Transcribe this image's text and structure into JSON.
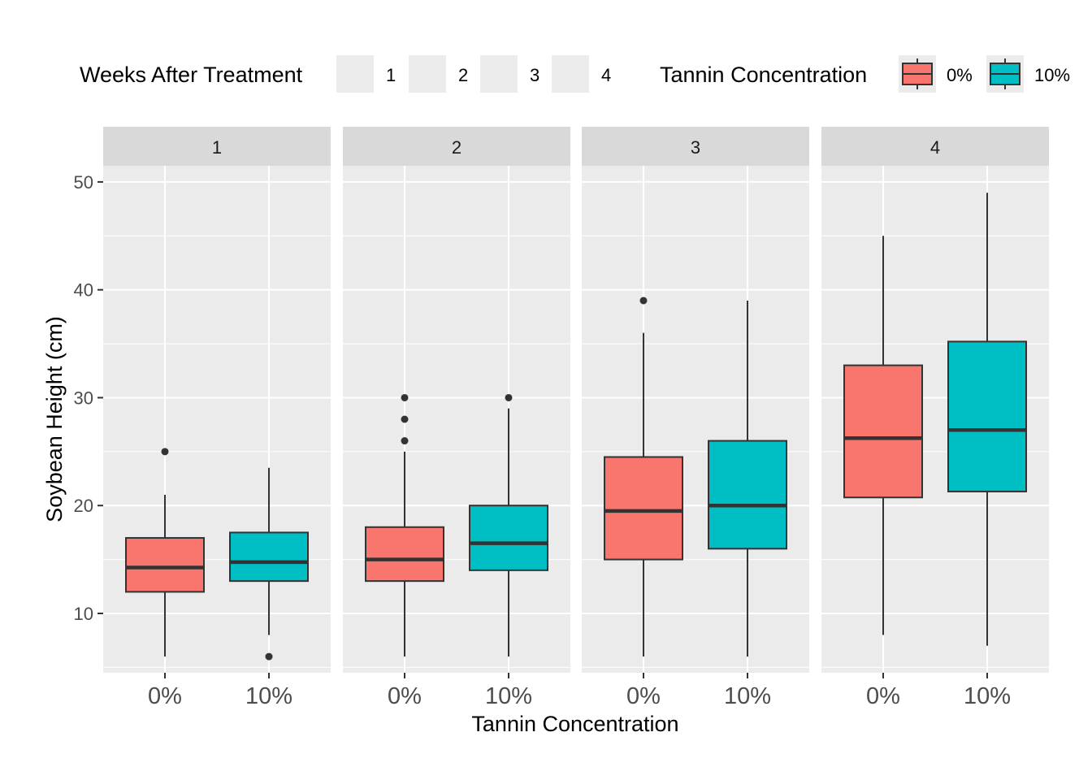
{
  "chart_data": {
    "type": "boxplot",
    "facet_title": "Weeks After Treatment",
    "facets": [
      "1",
      "2",
      "3",
      "4"
    ],
    "categories": [
      "0%",
      "10%"
    ],
    "xlabel": "Tannin Concentration",
    "ylabel": "Soybean Height (cm)",
    "yticks": [
      10,
      20,
      30,
      40,
      50
    ],
    "ylim": [
      4.5,
      51.5
    ],
    "grid": true,
    "legend": {
      "position": "top",
      "facet_legend": {
        "title": "Weeks After Treatment",
        "items": [
          "1",
          "2",
          "3",
          "4"
        ]
      },
      "fill_legend": {
        "title": "Tannin Concentration",
        "items": [
          "0%",
          "10%"
        ]
      }
    },
    "colors": {
      "0%": "#F8766D",
      "10%": "#00BFC4",
      "panel_bg": "#EBEBEB",
      "strip_bg": "#D9D9D9"
    },
    "boxes": [
      {
        "week": "1",
        "tannin": "0%",
        "min": 6,
        "q1": 12,
        "median": 14.25,
        "q3": 17,
        "max": 21,
        "outliers": [
          25
        ]
      },
      {
        "week": "1",
        "tannin": "10%",
        "min": 8,
        "q1": 13,
        "median": 14.75,
        "q3": 17.5,
        "max": 23.5,
        "outliers": [
          6
        ]
      },
      {
        "week": "2",
        "tannin": "0%",
        "min": 6,
        "q1": 13,
        "median": 15,
        "q3": 18,
        "max": 25,
        "outliers": [
          26,
          28,
          30
        ]
      },
      {
        "week": "2",
        "tannin": "10%",
        "min": 6,
        "q1": 14,
        "median": 16.5,
        "q3": 20,
        "max": 29,
        "outliers": [
          30
        ]
      },
      {
        "week": "3",
        "tannin": "0%",
        "min": 6,
        "q1": 15,
        "median": 19.5,
        "q3": 24.5,
        "max": 36,
        "outliers": [
          39
        ]
      },
      {
        "week": "3",
        "tannin": "10%",
        "min": 6,
        "q1": 16,
        "median": 20,
        "q3": 26,
        "max": 39,
        "outliers": []
      },
      {
        "week": "4",
        "tannin": "0%",
        "min": 8,
        "q1": 20.75,
        "median": 26.25,
        "q3": 33,
        "max": 45,
        "outliers": []
      },
      {
        "week": "4",
        "tannin": "10%",
        "min": 7,
        "q1": 21.3,
        "median": 27,
        "q3": 35.2,
        "max": 49,
        "outliers": []
      }
    ]
  }
}
